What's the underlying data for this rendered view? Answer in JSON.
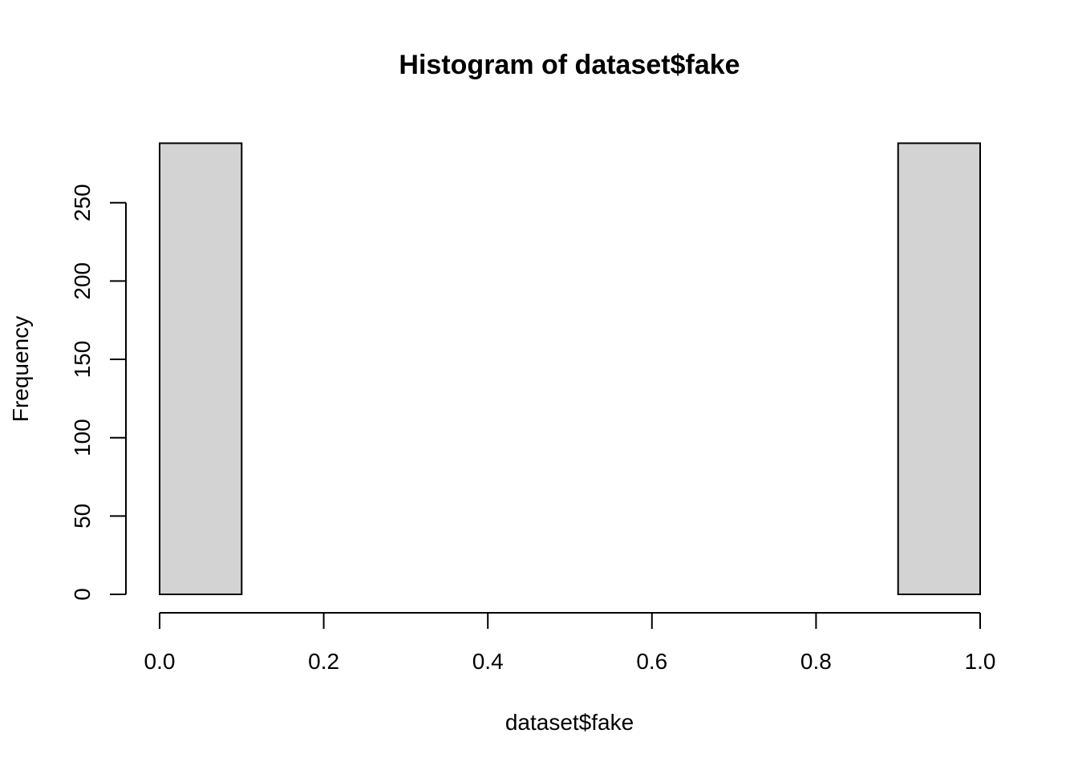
{
  "chart_data": {
    "type": "bar",
    "subtype": "histogram",
    "title": "Histogram of dataset$fake",
    "xlabel": "dataset$fake",
    "ylabel": "Frequency",
    "bins": [
      {
        "start": 0.0,
        "end": 0.1,
        "count": 288
      },
      {
        "start": 0.1,
        "end": 0.2,
        "count": 0
      },
      {
        "start": 0.2,
        "end": 0.3,
        "count": 0
      },
      {
        "start": 0.3,
        "end": 0.4,
        "count": 0
      },
      {
        "start": 0.4,
        "end": 0.5,
        "count": 0
      },
      {
        "start": 0.5,
        "end": 0.6,
        "count": 0
      },
      {
        "start": 0.6,
        "end": 0.7,
        "count": 0
      },
      {
        "start": 0.7,
        "end": 0.8,
        "count": 0
      },
      {
        "start": 0.8,
        "end": 0.9,
        "count": 0
      },
      {
        "start": 0.9,
        "end": 1.0,
        "count": 288
      }
    ],
    "xlim": [
      0.0,
      1.0
    ],
    "ylim": [
      0,
      288
    ],
    "x_ticks": [
      "0.0",
      "0.2",
      "0.4",
      "0.6",
      "0.8",
      "1.0"
    ],
    "y_ticks": [
      "0",
      "50",
      "100",
      "150",
      "200",
      "250"
    ],
    "bar_fill": "#d3d3d3",
    "bar_stroke": "#000000",
    "grid": false,
    "legend": "none"
  }
}
